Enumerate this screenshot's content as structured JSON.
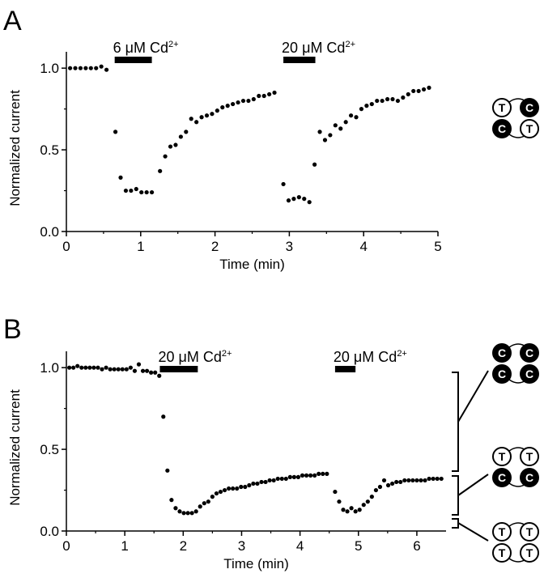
{
  "chart_data": [
    {
      "panel": "A",
      "type": "scatter",
      "xlabel": "Time (min)",
      "ylabel": "Normalized current",
      "xlim": [
        0,
        5
      ],
      "ylim": [
        0,
        1.1
      ],
      "xticks": [
        "0",
        "1",
        "2",
        "3",
        "4",
        "5"
      ],
      "yticks": [
        "0.0",
        "0.5",
        "1.0"
      ],
      "applications": [
        {
          "label_prefix": "6 ",
          "unit": "μM Cd",
          "sup": "2+",
          "start": 0.65,
          "end": 1.15
        },
        {
          "label_prefix": "20 ",
          "unit": "μM Cd",
          "sup": "2+",
          "start": 2.92,
          "end": 3.35
        }
      ],
      "x": [
        0.05,
        0.12,
        0.19,
        0.26,
        0.33,
        0.4,
        0.47,
        0.54,
        0.66,
        0.73,
        0.8,
        0.87,
        0.94,
        1.01,
        1.08,
        1.15,
        1.26,
        1.33,
        1.4,
        1.47,
        1.54,
        1.61,
        1.68,
        1.75,
        1.82,
        1.89,
        1.96,
        2.03,
        2.1,
        2.17,
        2.24,
        2.31,
        2.38,
        2.45,
        2.52,
        2.59,
        2.66,
        2.73,
        2.8,
        2.92,
        2.99,
        3.06,
        3.13,
        3.2,
        3.27,
        3.34,
        3.41,
        3.48,
        3.55,
        3.62,
        3.69,
        3.76,
        3.83,
        3.9,
        3.97,
        4.04,
        4.11,
        4.18,
        4.25,
        4.32,
        4.39,
        4.46,
        4.53,
        4.6,
        4.67,
        4.74,
        4.81,
        4.88
      ],
      "y": [
        1.0,
        1.0,
        1.0,
        1.0,
        1.0,
        1.0,
        1.01,
        0.99,
        0.61,
        0.33,
        0.25,
        0.25,
        0.26,
        0.24,
        0.24,
        0.24,
        0.37,
        0.46,
        0.52,
        0.53,
        0.58,
        0.61,
        0.69,
        0.67,
        0.7,
        0.71,
        0.72,
        0.74,
        0.76,
        0.77,
        0.78,
        0.79,
        0.8,
        0.8,
        0.81,
        0.83,
        0.83,
        0.84,
        0.85,
        0.29,
        0.19,
        0.2,
        0.21,
        0.2,
        0.18,
        0.41,
        0.61,
        0.56,
        0.59,
        0.65,
        0.63,
        0.67,
        0.71,
        0.7,
        0.75,
        0.77,
        0.78,
        0.8,
        0.8,
        0.81,
        0.81,
        0.8,
        0.82,
        0.84,
        0.86,
        0.86,
        0.87,
        0.88
      ]
    },
    {
      "panel": "B",
      "type": "scatter",
      "xlabel": "Time (min)",
      "ylabel": "Normalized current",
      "xlim": [
        0,
        6.5
      ],
      "ylim": [
        0,
        1.1
      ],
      "xticks": [
        "0",
        "1",
        "2",
        "3",
        "4",
        "5",
        "6"
      ],
      "yticks": [
        "0.0",
        "0.5",
        "1.0"
      ],
      "applications": [
        {
          "label_prefix": "20 ",
          "unit": "μM Cd",
          "sup": "2+",
          "start": 1.6,
          "end": 2.25
        },
        {
          "label_prefix": "20 ",
          "unit": "μM Cd",
          "sup": "2+",
          "start": 4.6,
          "end": 4.95
        }
      ],
      "x": [
        0.05,
        0.12,
        0.19,
        0.26,
        0.33,
        0.4,
        0.47,
        0.54,
        0.61,
        0.68,
        0.75,
        0.82,
        0.89,
        0.96,
        1.03,
        1.1,
        1.17,
        1.24,
        1.31,
        1.38,
        1.45,
        1.52,
        1.59,
        1.66,
        1.73,
        1.8,
        1.87,
        1.94,
        2.01,
        2.08,
        2.15,
        2.22,
        2.29,
        2.36,
        2.43,
        2.5,
        2.57,
        2.64,
        2.71,
        2.78,
        2.85,
        2.92,
        2.99,
        3.06,
        3.13,
        3.2,
        3.27,
        3.34,
        3.41,
        3.48,
        3.55,
        3.62,
        3.69,
        3.76,
        3.83,
        3.9,
        3.97,
        4.04,
        4.11,
        4.18,
        4.25,
        4.32,
        4.39,
        4.46,
        4.6,
        4.67,
        4.74,
        4.81,
        4.88,
        4.95,
        5.02,
        5.09,
        5.16,
        5.23,
        5.3,
        5.37,
        5.44,
        5.51,
        5.58,
        5.65,
        5.72,
        5.79,
        5.86,
        5.93,
        6.0,
        6.07,
        6.14,
        6.21,
        6.28,
        6.35,
        6.42
      ],
      "y": [
        1.0,
        1.0,
        1.01,
        1.0,
        1.0,
        1.0,
        1.0,
        1.0,
        0.99,
        1.0,
        0.99,
        0.99,
        0.99,
        0.99,
        0.99,
        1.0,
        0.98,
        1.02,
        0.98,
        0.98,
        0.97,
        0.97,
        0.95,
        0.7,
        0.37,
        0.19,
        0.14,
        0.12,
        0.11,
        0.11,
        0.11,
        0.12,
        0.15,
        0.17,
        0.18,
        0.21,
        0.23,
        0.24,
        0.25,
        0.26,
        0.26,
        0.26,
        0.27,
        0.27,
        0.28,
        0.29,
        0.29,
        0.3,
        0.3,
        0.31,
        0.31,
        0.32,
        0.32,
        0.32,
        0.33,
        0.33,
        0.33,
        0.34,
        0.34,
        0.34,
        0.34,
        0.35,
        0.35,
        0.35,
        0.24,
        0.18,
        0.13,
        0.12,
        0.14,
        0.12,
        0.13,
        0.16,
        0.18,
        0.21,
        0.25,
        0.27,
        0.31,
        0.28,
        0.29,
        0.3,
        0.3,
        0.31,
        0.31,
        0.31,
        0.31,
        0.31,
        0.31,
        0.32,
        0.32,
        0.32,
        0.32
      ]
    }
  ],
  "figure": {
    "panel_a_label": "A",
    "panel_b_label": "B",
    "glyph_letters": {
      "t": "T",
      "c": "C"
    }
  }
}
